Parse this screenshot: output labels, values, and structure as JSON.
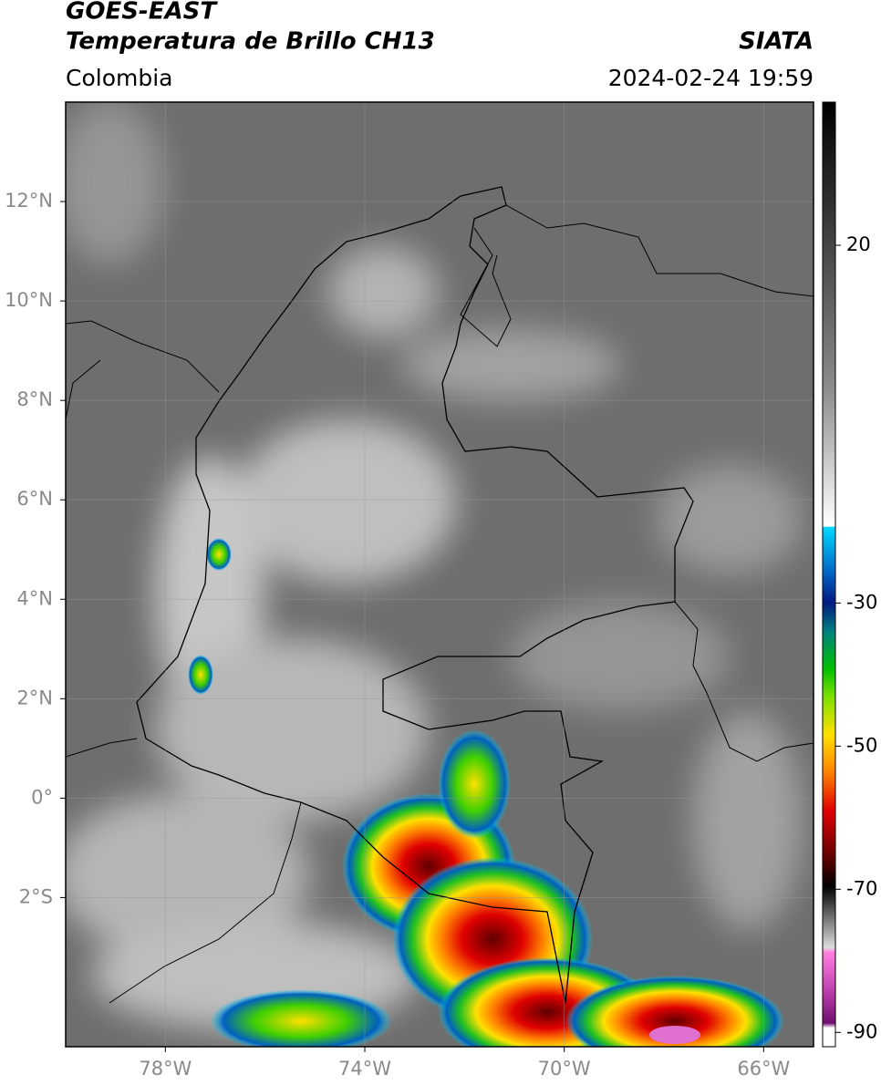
{
  "header": {
    "title": "GOES-EAST",
    "subtitle": "Temperatura de Brillo CH13",
    "source": "SIATA",
    "region": "Colombia",
    "datetime": "2024-02-24 19:59"
  },
  "map": {
    "xlim": [
      -80,
      -65
    ],
    "ylim": [
      -5,
      14
    ],
    "xticks": [
      {
        "value": -78,
        "label": "78°W"
      },
      {
        "value": -74,
        "label": "74°W"
      },
      {
        "value": -70,
        "label": "70°W"
      },
      {
        "value": -66,
        "label": "66°W"
      }
    ],
    "yticks": [
      {
        "value": 12,
        "label": "12°N"
      },
      {
        "value": 10,
        "label": "10°N"
      },
      {
        "value": 8,
        "label": "8°N"
      },
      {
        "value": 6,
        "label": "6°N"
      },
      {
        "value": 4,
        "label": "4°N"
      },
      {
        "value": 2,
        "label": "2°N"
      },
      {
        "value": 0,
        "label": "0°"
      },
      {
        "value": -2,
        "label": "2°S"
      }
    ],
    "grid": true
  },
  "colorbar": {
    "lim": [
      40,
      -92
    ],
    "ticks": [
      20,
      -30,
      -50,
      -70,
      -90
    ]
  }
}
